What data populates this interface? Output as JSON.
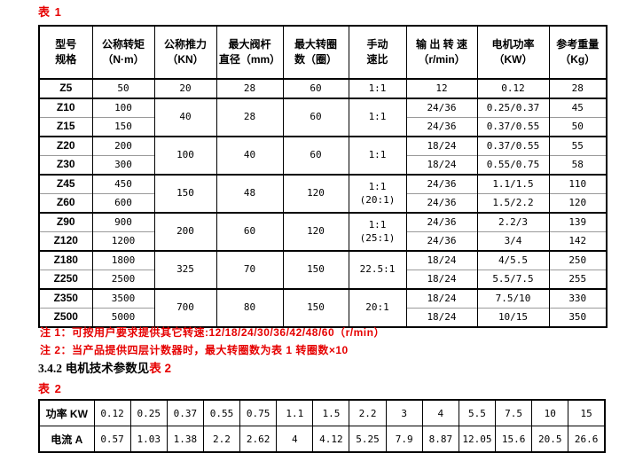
{
  "page": {
    "background": "#ffffff",
    "accent_red": "#e60000",
    "text_color": "#000000"
  },
  "table1": {
    "label": "表 1",
    "headers": [
      [
        "型号",
        "规格"
      ],
      [
        "公称转矩",
        "（N·m）"
      ],
      [
        "公称推力",
        "（KN）"
      ],
      [
        "最大阀杆",
        "直径（mm）"
      ],
      [
        "最大转圈",
        "数（圈）"
      ],
      [
        "手动",
        "速比"
      ],
      [
        "输 出 转 速",
        "（r/min）"
      ],
      [
        "电机功率",
        "（KW）"
      ],
      [
        "参考重量",
        "（Kg）"
      ]
    ],
    "groups": [
      {
        "thrust": "20",
        "stem": "28",
        "turns": "60",
        "ratio": [
          "1:1"
        ],
        "rows": [
          {
            "model": "Z5",
            "torque": "50",
            "speed": "12",
            "power": "0.12",
            "weight": "28"
          }
        ]
      },
      {
        "thrust": "40",
        "stem": "28",
        "turns": "60",
        "ratio": [
          "1:1"
        ],
        "rows": [
          {
            "model": "Z10",
            "torque": "100",
            "speed": "24/36",
            "power": "0.25/0.37",
            "weight": "45"
          },
          {
            "model": "Z15",
            "torque": "150",
            "speed": "24/36",
            "power": "0.37/0.55",
            "weight": "50"
          }
        ]
      },
      {
        "thrust": "100",
        "stem": "40",
        "turns": "60",
        "ratio": [
          "1:1"
        ],
        "rows": [
          {
            "model": "Z20",
            "torque": "200",
            "speed": "18/24",
            "power": "0.37/0.55",
            "weight": "55"
          },
          {
            "model": "Z30",
            "torque": "300",
            "speed": "18/24",
            "power": "0.55/0.75",
            "weight": "58"
          }
        ]
      },
      {
        "thrust": "150",
        "stem": "48",
        "turns": "120",
        "ratio": [
          "1:1",
          "(20:1)"
        ],
        "rows": [
          {
            "model": "Z45",
            "torque": "450",
            "speed": "24/36",
            "power": "1.1/1.5",
            "weight": "110"
          },
          {
            "model": "Z60",
            "torque": "600",
            "speed": "24/36",
            "power": "1.5/2.2",
            "weight": "120"
          }
        ]
      },
      {
        "thrust": "200",
        "stem": "60",
        "turns": "120",
        "ratio": [
          "1:1",
          "(25:1)"
        ],
        "rows": [
          {
            "model": "Z90",
            "torque": "900",
            "speed": "24/36",
            "power": "2.2/3",
            "weight": "139"
          },
          {
            "model": "Z120",
            "torque": "1200",
            "speed": "24/36",
            "power": "3/4",
            "weight": "142"
          }
        ]
      },
      {
        "thrust": "325",
        "stem": "70",
        "turns": "150",
        "ratio": [
          "22.5:1"
        ],
        "rows": [
          {
            "model": "Z180",
            "torque": "1800",
            "speed": "18/24",
            "power": "4/5.5",
            "weight": "250"
          },
          {
            "model": "Z250",
            "torque": "2500",
            "speed": "18/24",
            "power": "5.5/7.5",
            "weight": "255"
          }
        ]
      },
      {
        "thrust": "700",
        "stem": "80",
        "turns": "150",
        "ratio": [
          "20:1"
        ],
        "rows": [
          {
            "model": "Z350",
            "torque": "3500",
            "speed": "18/24",
            "power": "7.5/10",
            "weight": "330"
          },
          {
            "model": "Z500",
            "torque": "5000",
            "speed": "18/24",
            "power": "10/15",
            "weight": "350"
          }
        ]
      }
    ]
  },
  "notes": [
    "注 1：可按用户要求提供其它转速:12/18/24/30/36/42/48/60（r/min）",
    "注 2：当产品提供四层计数器时，最大转圈数为表 1 转圈数×10"
  ],
  "heading": {
    "number": "3.4.2",
    "text": " 电机技术参数见",
    "red_text": "表 2"
  },
  "table2": {
    "label": "表 2",
    "row_headers": [
      "功率 KW",
      "电流 A"
    ],
    "power_values": [
      "0.12",
      "0.25",
      "0.37",
      "0.55",
      "0.75",
      "1.1",
      "1.5",
      "2.2",
      "3",
      "4",
      "5.5",
      "7.5",
      "10",
      "15"
    ],
    "current_values": [
      "0.57",
      "1.03",
      "1.38",
      "2.2",
      "2.62",
      "4",
      "4.12",
      "5.25",
      "7.9",
      "8.87",
      "12.05",
      "15.6",
      "20.5",
      "26.6"
    ]
  }
}
